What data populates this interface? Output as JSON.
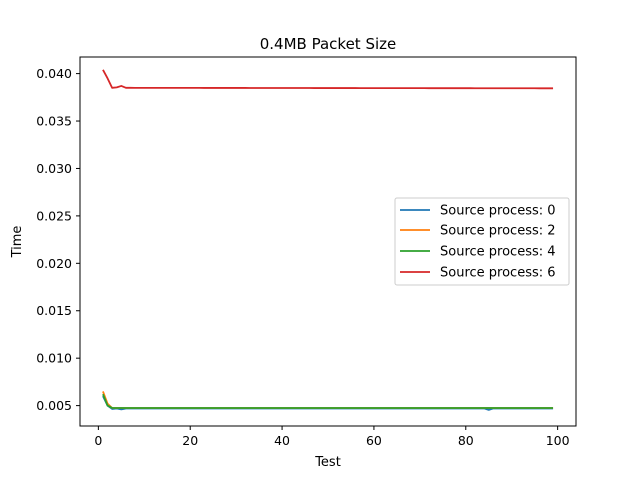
{
  "chart_data": {
    "type": "line",
    "title": "0.4MB Packet Size",
    "xlabel": "Test",
    "ylabel": "Time",
    "xlim": [
      -4,
      104
    ],
    "ylim": [
      0.00285,
      0.04175
    ],
    "xticks": [
      0,
      20,
      40,
      60,
      80,
      100
    ],
    "xtick_labels": [
      "0",
      "20",
      "40",
      "60",
      "80",
      "100"
    ],
    "yticks": [
      0.005,
      0.01,
      0.015,
      0.02,
      0.025,
      0.03,
      0.035,
      0.04
    ],
    "ytick_labels": [
      "0.005",
      "0.010",
      "0.015",
      "0.020",
      "0.025",
      "0.030",
      "0.035",
      "0.040"
    ],
    "grid": false,
    "legend_position": "center-right",
    "series": [
      {
        "name": "Source process: 0",
        "color": "#1f77b4",
        "base": 0.0047,
        "points": [
          [
            1,
            0.006
          ],
          [
            2,
            0.005
          ],
          [
            3,
            0.00465
          ],
          [
            4,
            0.0047
          ],
          [
            5,
            0.0046
          ],
          [
            6,
            0.0047
          ],
          [
            84,
            0.0047
          ],
          [
            85,
            0.00455
          ],
          [
            86,
            0.0047
          ],
          [
            99,
            0.0047
          ]
        ]
      },
      {
        "name": "Source process: 2",
        "color": "#ff7f0e",
        "base": 0.00475,
        "points": [
          [
            1,
            0.0065
          ],
          [
            2,
            0.0052
          ],
          [
            3,
            0.00475
          ],
          [
            99,
            0.00475
          ]
        ]
      },
      {
        "name": "Source process: 4",
        "color": "#2ca02c",
        "base": 0.00475,
        "points": [
          [
            1,
            0.0062
          ],
          [
            2,
            0.005
          ],
          [
            3,
            0.00475
          ],
          [
            99,
            0.00475
          ]
        ]
      },
      {
        "name": "Source process: 6",
        "color": "#d62728",
        "base": 0.03845,
        "points": [
          [
            1,
            0.0404
          ],
          [
            2,
            0.0395
          ],
          [
            3,
            0.0385
          ],
          [
            4,
            0.03855
          ],
          [
            5,
            0.0387
          ],
          [
            6,
            0.0385
          ],
          [
            99,
            0.03845
          ]
        ]
      }
    ]
  }
}
